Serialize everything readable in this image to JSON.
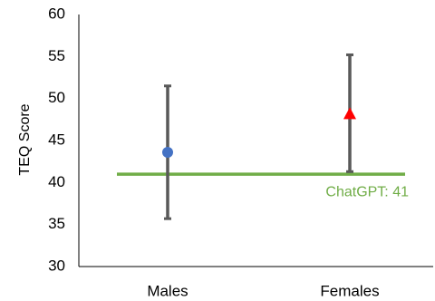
{
  "chart_data": {
    "type": "scatter",
    "title": "",
    "xlabel": "",
    "ylabel": "TEQ Score",
    "ylim": [
      30,
      60
    ],
    "yticks": [
      30,
      35,
      40,
      45,
      50,
      55,
      60
    ],
    "categories": [
      "Males",
      "Females"
    ],
    "series": [
      {
        "category": "Males",
        "mean": 43.6,
        "error_low": 35.7,
        "error_high": 51.5,
        "marker": "circle",
        "color": "#4472c4"
      },
      {
        "category": "Females",
        "mean": 48.2,
        "error_low": 41.3,
        "error_high": 55.2,
        "marker": "triangle",
        "color": "#ff0000"
      }
    ],
    "reference_line": {
      "value": 41,
      "label": "ChatGPT: 41",
      "color": "#70ad47"
    },
    "error_bar_color": "#595959",
    "grid": false,
    "legend": "none"
  }
}
